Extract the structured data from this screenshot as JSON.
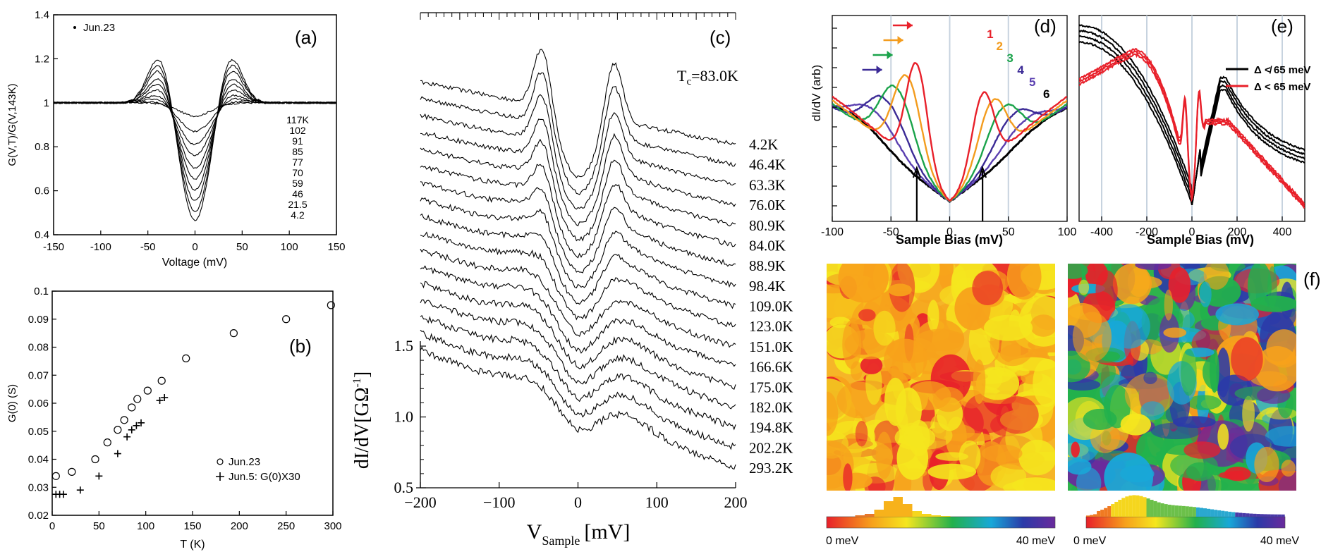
{
  "chart_data": [
    {
      "panel": "(a)",
      "type": "line",
      "xlabel": "Voltage (mV)",
      "ylabel": "G(V,T)/G(V,143K)",
      "xlim": [
        -150,
        150
      ],
      "ylim": [
        0.4,
        1.4
      ],
      "xticks": [
        -150,
        -100,
        -50,
        0,
        50,
        100,
        150
      ],
      "yticks": [
        0.4,
        0.6,
        0.8,
        1,
        1.2,
        1.4
      ],
      "ytick_labels": [
        "0.4",
        "0.6",
        "0.8",
        "1",
        "1.2",
        "1.4"
      ],
      "legend": "Jun.23",
      "series_labels": [
        "117K",
        "102",
        "91",
        "85",
        "77",
        "70",
        "59",
        "46",
        "21.5",
        "4.2"
      ],
      "series": [
        {
          "name": "117K",
          "dip": 0.94,
          "peak": 1.0
        },
        {
          "name": "102",
          "dip": 0.87,
          "peak": 1.01
        },
        {
          "name": "91",
          "dip": 0.81,
          "peak": 1.03
        },
        {
          "name": "85",
          "dip": 0.76,
          "peak": 1.05
        },
        {
          "name": "77",
          "dip": 0.7,
          "peak": 1.08
        },
        {
          "name": "70",
          "dip": 0.65,
          "peak": 1.11
        },
        {
          "name": "59",
          "dip": 0.6,
          "peak": 1.14
        },
        {
          "name": "46",
          "dip": 0.55,
          "peak": 1.18
        },
        {
          "name": "21.5",
          "dip": 0.5,
          "peak": 1.21
        },
        {
          "name": "4.2",
          "dip": 0.46,
          "peak": 1.24
        }
      ]
    },
    {
      "panel": "(b)",
      "type": "scatter",
      "xlabel": "T (K)",
      "ylabel": "G(0) (S)",
      "xlim": [
        0,
        300
      ],
      "ylim": [
        0.02,
        0.1
      ],
      "xticks": [
        0,
        50,
        100,
        150,
        200,
        250,
        300
      ],
      "yticks": [
        0.02,
        0.03,
        0.04,
        0.05,
        0.06,
        0.07,
        0.08,
        0.09,
        0.1
      ],
      "ytick_labels": [
        "0.02",
        "0.03",
        "0.04",
        "0.05",
        "0.06",
        "0.07",
        "0.08",
        "0.09",
        "0.1"
      ],
      "legend": [
        "Jun.23",
        "Jun.5: G(0)X30"
      ],
      "series": [
        {
          "name": "Jun.23",
          "marker": "circle",
          "x": [
            4,
            21,
            46,
            59,
            70,
            77,
            85,
            91,
            102,
            117,
            143,
            194,
            250,
            298
          ],
          "y": [
            0.034,
            0.0355,
            0.04,
            0.046,
            0.0505,
            0.054,
            0.0585,
            0.0615,
            0.0645,
            0.068,
            0.076,
            0.085,
            0.09,
            0.095
          ]
        },
        {
          "name": "Jun.5: G(0)X30",
          "marker": "plus",
          "x": [
            4,
            8,
            12,
            30,
            50,
            70,
            80,
            85,
            90,
            95,
            115,
            120
          ],
          "y": [
            0.0275,
            0.0275,
            0.0275,
            0.029,
            0.034,
            0.042,
            0.048,
            0.0505,
            0.052,
            0.053,
            0.061,
            0.062
          ]
        }
      ]
    },
    {
      "panel": "(c)",
      "type": "line",
      "xlabel": "V",
      "xlabel_sub": "Sample",
      "xlabel_unit": "[mV]",
      "ylabel": "dI/dV[GΩ",
      "ylabel_sup": "-1",
      "ylabel_close": "]",
      "xlim": [
        -200,
        200
      ],
      "xticks": [
        -200,
        -100,
        0,
        100,
        200
      ],
      "xtick_labels": [
        "−200",
        "−100",
        "0",
        "100",
        "200"
      ],
      "yticks": [
        0.5,
        1.0,
        1.5
      ],
      "ytick_labels": [
        "0.5",
        "1.0",
        "1.5"
      ],
      "annotation": "T",
      "annotation_sub": "c",
      "annotation_rest": "=83.0K",
      "series_labels": [
        "4.2K",
        "46.4K",
        "63.3K",
        "76.0K",
        "80.9K",
        "84.0K",
        "88.9K",
        "98.4K",
        "109.0K",
        "123.0K",
        "151.0K",
        "166.6K",
        "175.0K",
        "182.0K",
        "194.8K",
        "202.2K",
        "293.2K"
      ]
    },
    {
      "panel": "(d)",
      "type": "line",
      "xlabel": "Sample Bias (mV)",
      "ylabel": "dI/dV (arb)",
      "xlim": [
        -100,
        100
      ],
      "xticks": [
        -100,
        -50,
        0,
        50,
        100
      ],
      "series_numbers": [
        "1",
        "2",
        "3",
        "4",
        "5",
        "6"
      ],
      "series": [
        {
          "name": "1",
          "gap": 28,
          "color": "#e8202a"
        },
        {
          "name": "2",
          "gap": 36,
          "color": "#f39c1e"
        },
        {
          "name": "3",
          "gap": 45,
          "color": "#1aa34a"
        },
        {
          "name": "4",
          "gap": 54,
          "color": "#3b2a96"
        },
        {
          "name": "5",
          "gap": 64,
          "color": "#5a3fb0"
        },
        {
          "name": "6",
          "gap": 76,
          "color": "#000000"
        }
      ]
    },
    {
      "panel": "(e)",
      "type": "line",
      "xlabel": "Sample Bias (mV)",
      "xlim": [
        -500,
        500
      ],
      "xticks": [
        -400,
        -200,
        0,
        200,
        400
      ],
      "legend": [
        {
          "label": "Δ ≮ 65 meV",
          "color": "#000000"
        },
        {
          "label": "Δ < 65 meV",
          "color": "#e8202a"
        }
      ]
    },
    {
      "panel": "(f)",
      "type": "heatmap",
      "colorbar_min": "0 meV",
      "colorbar_max": "40 meV",
      "colors": [
        "#e8202a",
        "#f7a21b",
        "#f5e61e",
        "#22b14c",
        "#18a8d8",
        "#2b3aa8",
        "#6a2a9c"
      ]
    }
  ]
}
